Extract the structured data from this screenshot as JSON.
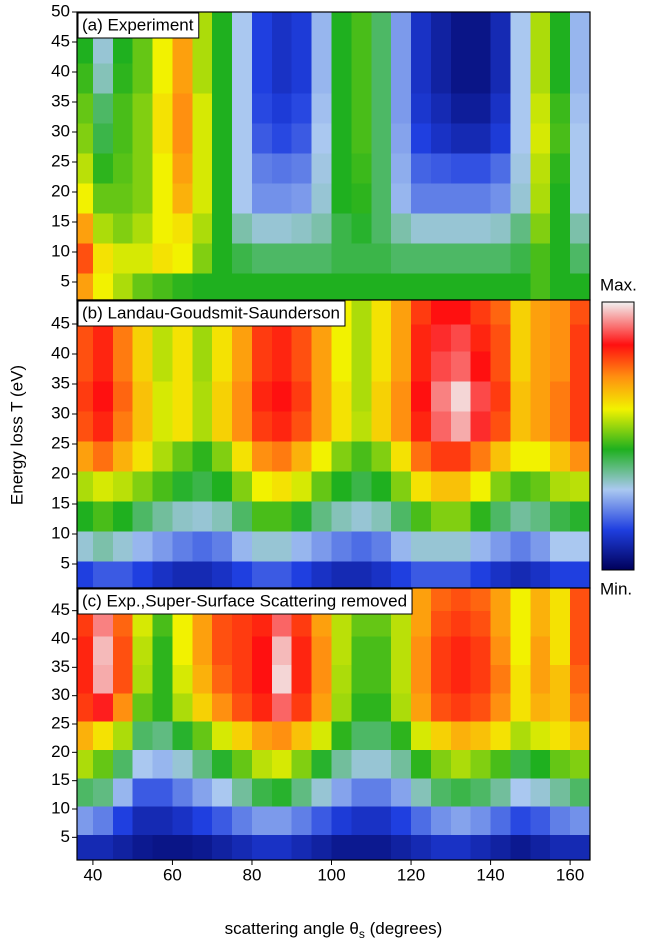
{
  "chart_data": [
    {
      "type": "heatmap",
      "title": "(a) Experiment",
      "x": [
        37.5,
        42.5,
        47.5,
        52.5,
        57.5,
        62.5,
        67.5,
        72.5,
        77.5,
        82.5,
        87.5,
        92.5,
        97.5,
        102.5,
        107.5,
        112.5,
        117.5,
        122.5,
        127.5,
        132.5,
        137.5,
        142.5,
        147.5,
        152.5,
        157.5,
        162.5
      ],
      "y": [
        4,
        9,
        14,
        19,
        24,
        29,
        34,
        39,
        44,
        48
      ],
      "z": [
        [
          70,
          60,
          55,
          50,
          48,
          46,
          45,
          45,
          45,
          45,
          45,
          45,
          45,
          45,
          45,
          45,
          45,
          45,
          45,
          45,
          45,
          45,
          45,
          48,
          45,
          45
        ],
        [
          78,
          62,
          58,
          58,
          62,
          60,
          52,
          45,
          42,
          40,
          40,
          40,
          40,
          42,
          42,
          42,
          40,
          40,
          40,
          40,
          40,
          40,
          42,
          48,
          45,
          40
        ],
        [
          70,
          55,
          52,
          55,
          60,
          62,
          55,
          45,
          35,
          32,
          32,
          33,
          35,
          42,
          44,
          40,
          35,
          32,
          32,
          32,
          32,
          33,
          38,
          52,
          45,
          35
        ],
        [
          60,
          50,
          50,
          52,
          60,
          68,
          58,
          45,
          30,
          24,
          24,
          25,
          32,
          45,
          46,
          40,
          28,
          22,
          22,
          22,
          22,
          24,
          32,
          55,
          45,
          30
        ],
        [
          56,
          46,
          49,
          52,
          60,
          70,
          58,
          45,
          30,
          22,
          21,
          22,
          31,
          45,
          47,
          40,
          27,
          19,
          18,
          17,
          17,
          20,
          31,
          56,
          46,
          30
        ],
        [
          52,
          42,
          48,
          52,
          62,
          72,
          58,
          45,
          30,
          18,
          16,
          18,
          30,
          45,
          48,
          40,
          26,
          15,
          12,
          10,
          10,
          14,
          30,
          58,
          48,
          30
        ],
        [
          50,
          40,
          48,
          52,
          62,
          72,
          58,
          45,
          30,
          16,
          14,
          16,
          29,
          45,
          48,
          40,
          25,
          13,
          10,
          7,
          7,
          12,
          30,
          57,
          47,
          29
        ],
        [
          47,
          34,
          46,
          50,
          60,
          70,
          55,
          45,
          30,
          15,
          12,
          14,
          28,
          45,
          48,
          40,
          25,
          12,
          8,
          5,
          5,
          10,
          30,
          55,
          45,
          28
        ],
        [
          45,
          32,
          45,
          50,
          60,
          70,
          55,
          45,
          30,
          15,
          12,
          14,
          28,
          45,
          48,
          40,
          25,
          12,
          8,
          5,
          5,
          10,
          30,
          55,
          45,
          28
        ],
        [
          45,
          32,
          45,
          50,
          60,
          70,
          55,
          45,
          30,
          15,
          12,
          14,
          28,
          45,
          48,
          40,
          25,
          12,
          8,
          5,
          5,
          10,
          30,
          55,
          45,
          28
        ]
      ],
      "xlim": [
        36,
        165
      ],
      "ylim": [
        2,
        50
      ],
      "yticks": [
        5,
        10,
        15,
        20,
        25,
        30,
        35,
        40,
        45,
        50
      ]
    },
    {
      "type": "heatmap",
      "title": "(b) Landau-Goudsmit-Saunderson",
      "ylabel": "Energy loss T (eV)",
      "x": [
        37.5,
        42.5,
        47.5,
        52.5,
        57.5,
        62.5,
        67.5,
        72.5,
        77.5,
        82.5,
        87.5,
        92.5,
        97.5,
        102.5,
        107.5,
        112.5,
        117.5,
        122.5,
        127.5,
        132.5,
        137.5,
        142.5,
        147.5,
        152.5,
        157.5,
        162.5
      ],
      "y": [
        3,
        8,
        13,
        18,
        23,
        28,
        33,
        38,
        43,
        47
      ],
      "z": [
        [
          15,
          18,
          18,
          15,
          12,
          10,
          10,
          12,
          15,
          18,
          18,
          15,
          12,
          10,
          10,
          12,
          15,
          18,
          18,
          18,
          15,
          12,
          10,
          12,
          15,
          15
        ],
        [
          32,
          35,
          32,
          28,
          25,
          22,
          20,
          22,
          28,
          32,
          32,
          28,
          25,
          22,
          20,
          22,
          28,
          32,
          32,
          32,
          28,
          25,
          22,
          25,
          30,
          30
        ],
        [
          45,
          48,
          45,
          40,
          36,
          33,
          32,
          34,
          40,
          48,
          48,
          44,
          38,
          34,
          32,
          34,
          40,
          48,
          52,
          52,
          46,
          40,
          36,
          38,
          42,
          44
        ],
        [
          55,
          58,
          56,
          52,
          48,
          44,
          42,
          45,
          52,
          60,
          62,
          58,
          50,
          45,
          42,
          45,
          52,
          62,
          66,
          66,
          60,
          52,
          48,
          50,
          55,
          56
        ],
        [
          70,
          75,
          68,
          62,
          55,
          50,
          46,
          52,
          62,
          72,
          74,
          68,
          60,
          52,
          48,
          52,
          62,
          75,
          80,
          80,
          74,
          66,
          60,
          60,
          66,
          72
        ],
        [
          78,
          82,
          74,
          66,
          58,
          62,
          55,
          64,
          72,
          80,
          82,
          78,
          70,
          62,
          56,
          64,
          72,
          82,
          90,
          95,
          86,
          78,
          66,
          70,
          74,
          80
        ],
        [
          80,
          84,
          76,
          66,
          58,
          62,
          55,
          64,
          72,
          82,
          84,
          80,
          70,
          62,
          55,
          64,
          72,
          84,
          92,
          98,
          88,
          80,
          66,
          70,
          74,
          80
        ],
        [
          78,
          82,
          74,
          64,
          56,
          62,
          54,
          62,
          70,
          80,
          82,
          78,
          70,
          60,
          55,
          62,
          70,
          82,
          88,
          90,
          84,
          78,
          64,
          70,
          72,
          80
        ],
        [
          78,
          82,
          74,
          64,
          56,
          62,
          54,
          62,
          70,
          80,
          82,
          78,
          70,
          60,
          55,
          62,
          70,
          82,
          86,
          88,
          82,
          78,
          64,
          70,
          72,
          80
        ],
        [
          76,
          80,
          72,
          64,
          56,
          62,
          54,
          62,
          70,
          80,
          80,
          76,
          70,
          60,
          55,
          62,
          70,
          80,
          84,
          84,
          80,
          76,
          64,
          70,
          72,
          78
        ]
      ],
      "xlim": [
        36,
        165
      ],
      "ylim": [
        1,
        49
      ],
      "yticks": [
        5,
        10,
        15,
        20,
        25,
        30,
        35,
        40,
        45
      ],
      "colorbar": {
        "max_label": "Max.",
        "min_label": "Min.",
        "stops": [
          {
            "value": 0,
            "color": "#00005a"
          },
          {
            "value": 15,
            "color": "#1f3fe0"
          },
          {
            "value": 30,
            "color": "#aac8f0"
          },
          {
            "value": 45,
            "color": "#1fb01f"
          },
          {
            "value": 60,
            "color": "#f2f200"
          },
          {
            "value": 72,
            "color": "#ff9010"
          },
          {
            "value": 84,
            "color": "#ff1010"
          },
          {
            "value": 100,
            "color": "#f2f2f2"
          }
        ]
      }
    },
    {
      "type": "heatmap",
      "title": "(c) Exp.,Super-Surface Scattering removed",
      "xlabel_parts": [
        "scattering angle θ",
        "s",
        " (degrees)"
      ],
      "x": [
        37.5,
        42.5,
        47.5,
        52.5,
        57.5,
        62.5,
        67.5,
        72.5,
        77.5,
        82.5,
        87.5,
        92.5,
        97.5,
        102.5,
        107.5,
        112.5,
        117.5,
        122.5,
        127.5,
        132.5,
        137.5,
        142.5,
        147.5,
        152.5,
        157.5,
        162.5
      ],
      "y": [
        3,
        8,
        13,
        18,
        23,
        28,
        33,
        38,
        43,
        47
      ],
      "z": [
        [
          10,
          10,
          8,
          6,
          5,
          5,
          6,
          8,
          10,
          12,
          12,
          10,
          8,
          6,
          6,
          6,
          8,
          10,
          12,
          12,
          10,
          8,
          6,
          8,
          10,
          10
        ],
        [
          25,
          22,
          15,
          10,
          10,
          12,
          15,
          18,
          22,
          25,
          25,
          22,
          18,
          14,
          12,
          12,
          15,
          20,
          24,
          26,
          24,
          20,
          16,
          18,
          22,
          24
        ],
        [
          40,
          38,
          28,
          18,
          18,
          22,
          26,
          30,
          36,
          42,
          44,
          38,
          32,
          26,
          22,
          22,
          26,
          34,
          40,
          42,
          40,
          36,
          30,
          32,
          36,
          40
        ],
        [
          55,
          50,
          40,
          30,
          28,
          32,
          38,
          44,
          50,
          56,
          58,
          52,
          44,
          36,
          32,
          32,
          36,
          46,
          52,
          55,
          52,
          48,
          42,
          45,
          50,
          52
        ],
        [
          68,
          62,
          55,
          40,
          38,
          44,
          50,
          58,
          64,
          70,
          72,
          66,
          58,
          46,
          40,
          40,
          46,
          58,
          64,
          68,
          66,
          62,
          55,
          58,
          62,
          66
        ],
        [
          80,
          85,
          72,
          50,
          46,
          55,
          64,
          72,
          78,
          82,
          90,
          80,
          70,
          54,
          46,
          46,
          55,
          70,
          78,
          80,
          78,
          72,
          62,
          68,
          66,
          74
        ],
        [
          82,
          95,
          78,
          55,
          46,
          58,
          68,
          76,
          80,
          84,
          98,
          82,
          72,
          55,
          48,
          48,
          56,
          72,
          80,
          82,
          80,
          74,
          62,
          70,
          66,
          76
        ],
        [
          82,
          96,
          78,
          56,
          46,
          60,
          70,
          78,
          80,
          84,
          96,
          82,
          72,
          56,
          48,
          48,
          56,
          72,
          80,
          82,
          80,
          72,
          60,
          70,
          62,
          78
        ],
        [
          80,
          92,
          76,
          58,
          48,
          60,
          70,
          78,
          80,
          82,
          90,
          80,
          70,
          56,
          50,
          50,
          56,
          70,
          78,
          80,
          78,
          70,
          60,
          68,
          62,
          78
        ],
        [
          78,
          86,
          76,
          58,
          50,
          60,
          70,
          76,
          78,
          80,
          84,
          78,
          70,
          58,
          52,
          52,
          58,
          70,
          76,
          78,
          76,
          70,
          60,
          68,
          62,
          78
        ]
      ],
      "xlim": [
        36,
        165
      ],
      "ylim": [
        1,
        49
      ],
      "yticks": [
        5,
        10,
        15,
        20,
        25,
        30,
        35,
        40,
        45
      ],
      "xticks": [
        40,
        60,
        80,
        100,
        120,
        140,
        160
      ]
    }
  ]
}
